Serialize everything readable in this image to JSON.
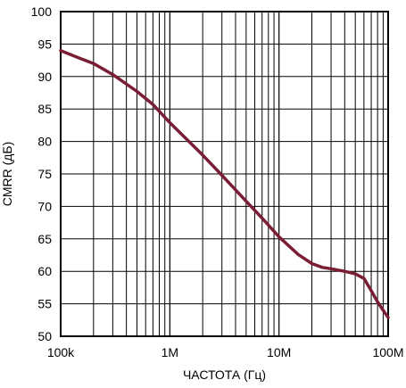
{
  "chart_data": {
    "type": "line",
    "xlabel": "ЧАСТОТА (Гц)",
    "ylabel": "CMRR (дБ)",
    "xscale": "log",
    "xlim": [
      100000,
      100000000
    ],
    "ylim": [
      50,
      100
    ],
    "grid": true,
    "xticks": [
      {
        "value": 100000,
        "label": "100k"
      },
      {
        "value": 1000000,
        "label": "1M"
      },
      {
        "value": 10000000,
        "label": "10M"
      },
      {
        "value": 100000000,
        "label": "100M"
      }
    ],
    "yticks": [
      100,
      95,
      90,
      85,
      80,
      75,
      70,
      65,
      60,
      55,
      50
    ],
    "series": [
      {
        "color": "#7a1e35",
        "points": [
          [
            100000,
            94.0
          ],
          [
            150000,
            92.8
          ],
          [
            200000,
            92.0
          ],
          [
            300000,
            90.3
          ],
          [
            500000,
            87.7
          ],
          [
            700000,
            85.7
          ],
          [
            1000000,
            82.9
          ],
          [
            2000000,
            77.9
          ],
          [
            3000000,
            74.8
          ],
          [
            5000000,
            70.8
          ],
          [
            7000000,
            68.2
          ],
          [
            10000000,
            65.3
          ],
          [
            15000000,
            62.6
          ],
          [
            20000000,
            61.2
          ],
          [
            25000000,
            60.6
          ],
          [
            30000000,
            60.4
          ],
          [
            40000000,
            60.0
          ],
          [
            50000000,
            59.6
          ],
          [
            60000000,
            58.9
          ],
          [
            70000000,
            57.0
          ],
          [
            80000000,
            55.3
          ],
          [
            90000000,
            54.0
          ],
          [
            100000000,
            52.9
          ]
        ]
      }
    ]
  }
}
